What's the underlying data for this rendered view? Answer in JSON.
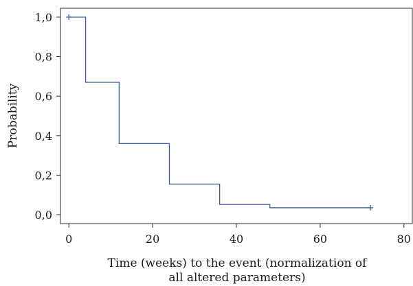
{
  "chart_data": {
    "type": "line",
    "title": "",
    "xlabel_lines": [
      "Time (weeks) to the event (normalization of",
      "all altered parameters)"
    ],
    "ylabel": "Probability",
    "xlim": [
      -2,
      82
    ],
    "ylim": [
      -0.045,
      1.045
    ],
    "x_ticks": [
      0,
      20,
      40,
      60,
      80
    ],
    "x_tick_labels": [
      "0",
      "20",
      "40",
      "60",
      "80"
    ],
    "y_ticks": [
      0.0,
      0.2,
      0.4,
      0.6,
      0.8,
      1.0
    ],
    "y_tick_labels": [
      "0,0",
      "0,2",
      "0,4",
      "0,6",
      "0,8",
      "1,0"
    ],
    "grid": false,
    "legend": "none",
    "series": [
      {
        "style": "step-post",
        "color": "#3c5a9a",
        "x": [
          0,
          4,
          12,
          24,
          36,
          48,
          72
        ],
        "y": [
          1.0,
          0.67,
          0.36,
          0.155,
          0.052,
          0.035,
          0.035
        ],
        "censored": [
          [
            0,
            1.0
          ],
          [
            72,
            0.035
          ]
        ]
      }
    ]
  }
}
